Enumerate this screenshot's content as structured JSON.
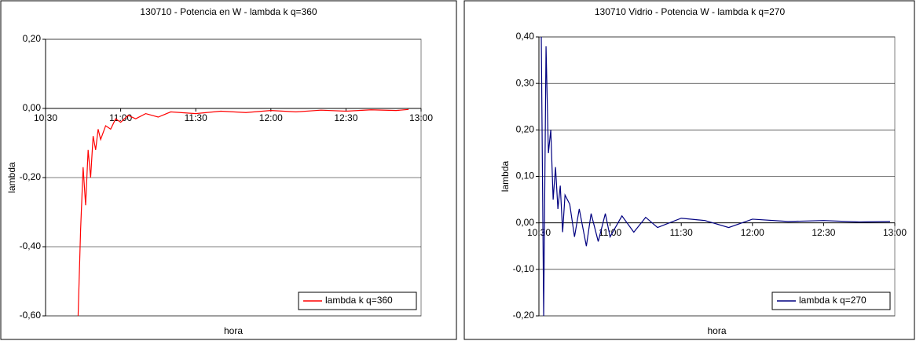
{
  "chart_data": [
    {
      "type": "line",
      "title": "130710 - Potencia en W - lambda k q=360",
      "x_label": "hora",
      "y_label": "lambda",
      "x": [
        "10:43",
        "10:44",
        "10:45",
        "10:46",
        "10:47",
        "10:48",
        "10:49",
        "10:50",
        "10:51",
        "10:52",
        "10:54",
        "10:56",
        "10:58",
        "11:00",
        "11:03",
        "11:06",
        "11:10",
        "11:15",
        "11:20",
        "11:30",
        "11:40",
        "11:50",
        "12:00",
        "12:10",
        "12:20",
        "12:30",
        "12:40",
        "12:50",
        "12:55"
      ],
      "series": [
        {
          "name": "lambda k q=360",
          "color": "#ff0000",
          "values": [
            -0.6,
            -0.35,
            -0.17,
            -0.28,
            -0.12,
            -0.2,
            -0.08,
            -0.12,
            -0.06,
            -0.09,
            -0.05,
            -0.06,
            -0.03,
            -0.04,
            -0.02,
            -0.03,
            -0.015,
            -0.025,
            -0.01,
            -0.015,
            -0.008,
            -0.012,
            -0.006,
            -0.01,
            -0.005,
            -0.008,
            -0.004,
            -0.006,
            -0.003
          ]
        }
      ],
      "xlim": [
        "10:30",
        "13:00"
      ],
      "xticks": [
        "10:30",
        "11:00",
        "11:30",
        "12:00",
        "12:30",
        "13:00"
      ],
      "ylim": [
        -0.6,
        0.2
      ],
      "yticks": [
        {
          "value": 0.2,
          "label": "0,20"
        },
        {
          "value": 0,
          "label": "0,00"
        },
        {
          "value": -0.2,
          "label": "-0,20"
        },
        {
          "value": -0.4,
          "label": "-0,40"
        },
        {
          "value": -0.6,
          "label": "-0,60"
        }
      ],
      "grid": true,
      "legend": "lower right"
    },
    {
      "type": "line",
      "title": "130710 Vidrio - Potencia W - lambda k q=270",
      "x_label": "hora",
      "y_label": "lambda",
      "x": [
        "10:31",
        "10:32",
        "10:33",
        "10:34",
        "10:35",
        "10:36",
        "10:37",
        "10:38",
        "10:39",
        "10:40",
        "10:41",
        "10:43",
        "10:45",
        "10:47",
        "10:50",
        "10:52",
        "10:55",
        "10:58",
        "11:00",
        "11:05",
        "11:10",
        "11:15",
        "11:20",
        "11:30",
        "11:40",
        "11:50",
        "12:00",
        "12:15",
        "12:30",
        "12:45",
        "12:58"
      ],
      "series": [
        {
          "name": "lambda k q=270",
          "color": "#000080",
          "values": [
            0.4,
            -0.2,
            0.38,
            0.15,
            0.2,
            0.05,
            0.12,
            0.03,
            0.08,
            -0.02,
            0.06,
            0.04,
            -0.03,
            0.03,
            -0.05,
            0.02,
            -0.04,
            0.02,
            -0.03,
            0.015,
            -0.02,
            0.012,
            -0.01,
            0.01,
            0.005,
            -0.01,
            0.008,
            0.003,
            0.005,
            0.002,
            0.003
          ]
        }
      ],
      "xlim": [
        "10:30",
        "13:00"
      ],
      "xticks": [
        "10:30",
        "11:00",
        "11:30",
        "12:00",
        "12:30",
        "13:00"
      ],
      "ylim": [
        -0.2,
        0.4
      ],
      "yticks": [
        {
          "value": 0.4,
          "label": "0,40"
        },
        {
          "value": 0.3,
          "label": "0,30"
        },
        {
          "value": 0.2,
          "label": "0,20"
        },
        {
          "value": 0.1,
          "label": "0,10"
        },
        {
          "value": 0,
          "label": "0,00"
        },
        {
          "value": -0.1,
          "label": "-0,10"
        },
        {
          "value": -0.2,
          "label": "-0,20"
        }
      ],
      "grid": true,
      "legend": "lower right"
    }
  ]
}
